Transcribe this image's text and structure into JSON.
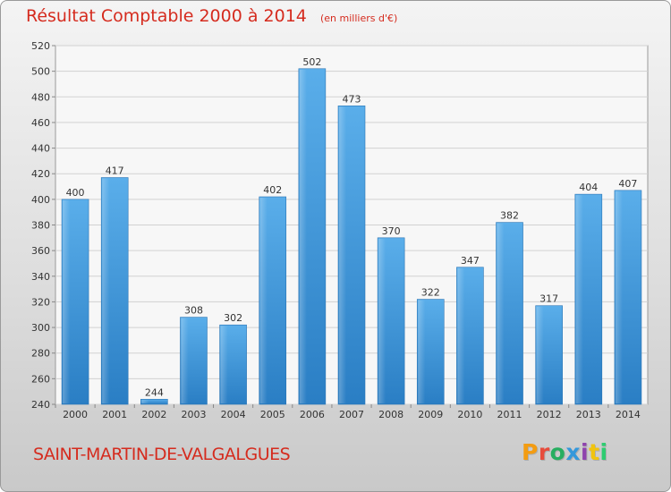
{
  "header": {
    "title": "Résultat Comptable 2000 à 2014",
    "unit": "(en milliers d'€)"
  },
  "footer": {
    "place": "SAINT-MARTIN-DE-VALGALGUES",
    "brand": "Proxiti",
    "brand_colors": [
      "#f39c12",
      "#e74c3c",
      "#27ae60",
      "#3498db",
      "#8e44ad",
      "#f1c40f",
      "#2ecc71"
    ]
  },
  "chart_data": {
    "type": "bar",
    "categories": [
      "2000",
      "2001",
      "2002",
      "2003",
      "2004",
      "2005",
      "2006",
      "2007",
      "2008",
      "2009",
      "2010",
      "2011",
      "2012",
      "2013",
      "2014"
    ],
    "values": [
      400,
      417,
      244,
      308,
      302,
      402,
      502,
      473,
      370,
      322,
      347,
      382,
      317,
      404,
      407
    ],
    "ylim": [
      240,
      520
    ],
    "yticks": [
      240,
      260,
      280,
      300,
      320,
      340,
      360,
      380,
      400,
      420,
      440,
      460,
      480,
      500,
      520
    ],
    "grid": true,
    "bar_color": "#4a9fe0"
  }
}
